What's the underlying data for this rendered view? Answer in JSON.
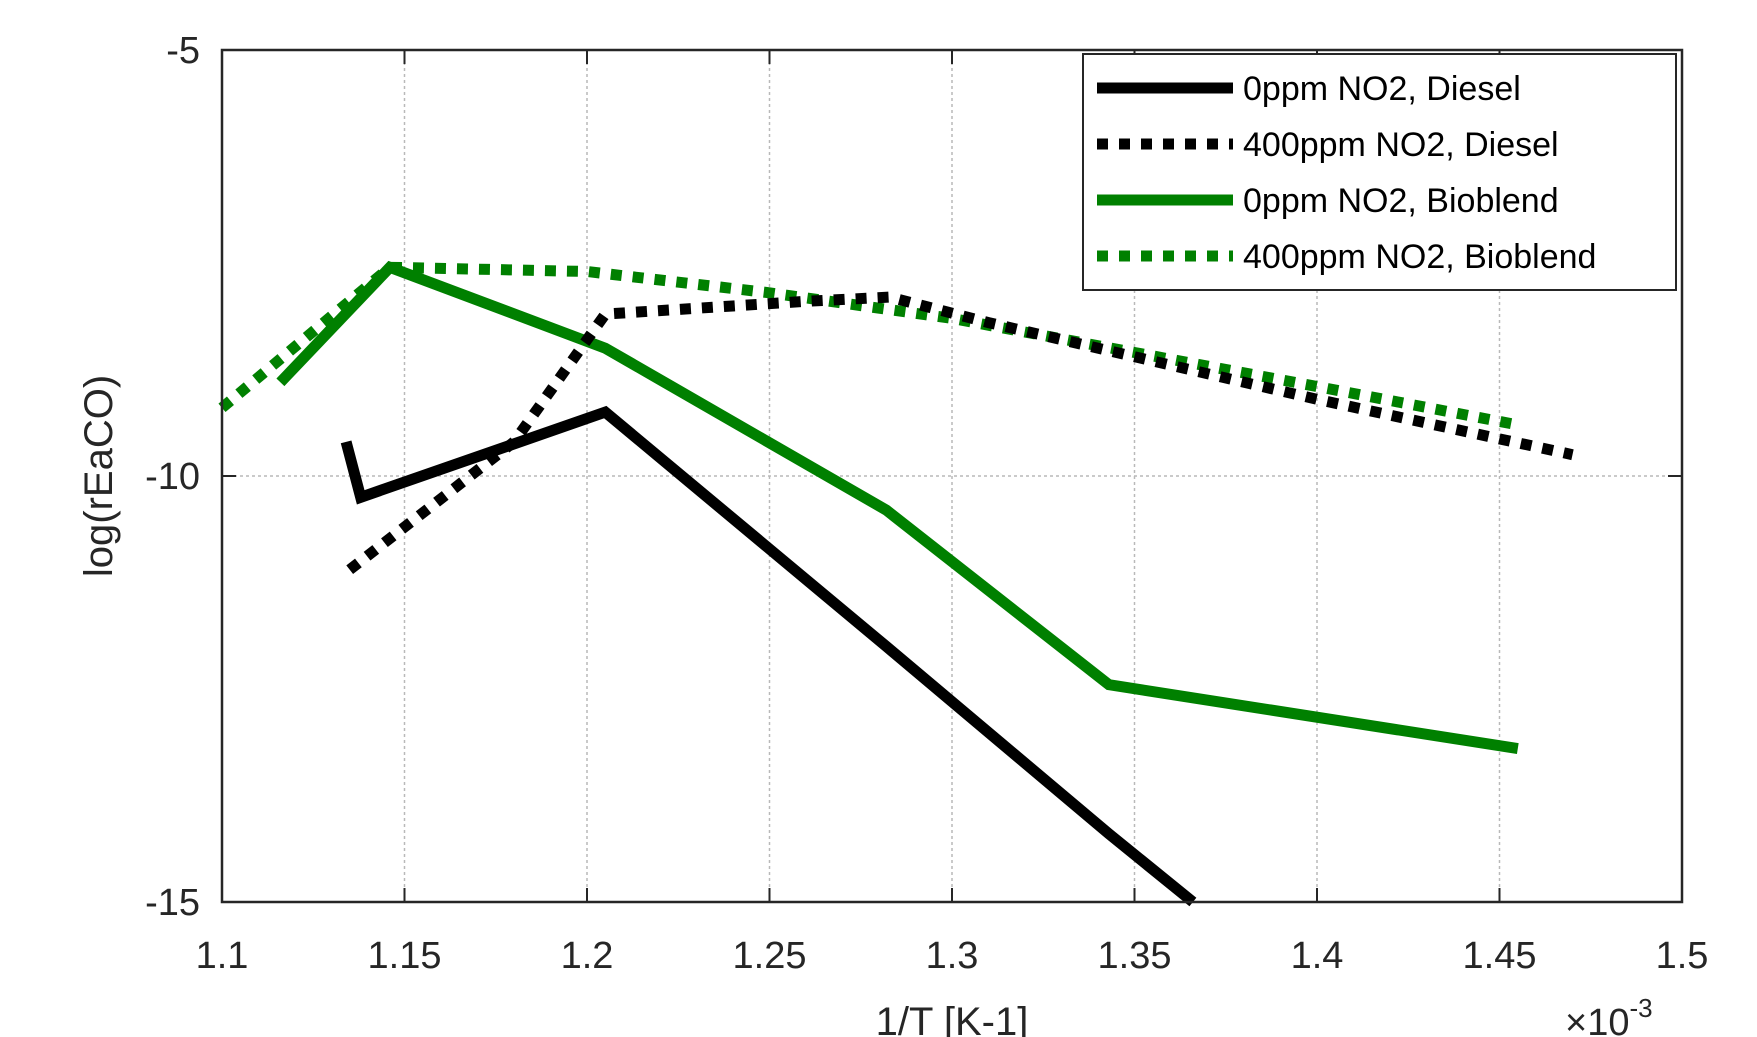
{
  "chart_data": {
    "type": "line",
    "title": "",
    "xlabel": "1/T [K-1]",
    "ylabel": "log(rEaCO)",
    "x_multiplier_base": "×10",
    "x_multiplier_exp": "-3",
    "xlim": [
      1.1,
      1.5
    ],
    "ylim": [
      -15,
      -5
    ],
    "x_ticks": [
      "1.1",
      "1.15",
      "1.2",
      "1.25",
      "1.3",
      "1.35",
      "1.4",
      "1.45",
      "1.5"
    ],
    "y_ticks": [
      "-5",
      "-10",
      "-15"
    ],
    "grid": true,
    "legend_position": "top-right",
    "series": [
      {
        "name": "0ppm NO2, Diesel",
        "color": "#000000",
        "style": "solid",
        "x": [
          1.134,
          1.138,
          1.205,
          1.282,
          1.343,
          1.366
        ],
        "y": [
          -9.6,
          -10.25,
          -9.25,
          -12.0,
          -14.2,
          -15.0
        ]
      },
      {
        "name": "400ppm NO2, Diesel",
        "color": "#000000",
        "style": "dotted",
        "x": [
          1.135,
          1.18,
          1.205,
          1.26,
          1.283,
          1.31,
          1.35,
          1.4,
          1.47
        ],
        "y": [
          -11.1,
          -9.6,
          -8.1,
          -7.95,
          -7.9,
          -8.2,
          -8.6,
          -9.1,
          -9.75
        ]
      },
      {
        "name": "0ppm NO2, Bioblend",
        "color": "#008000",
        "style": "solid",
        "x": [
          1.116,
          1.146,
          1.205,
          1.282,
          1.343,
          1.455
        ],
        "y": [
          -8.9,
          -7.55,
          -8.5,
          -10.4,
          -12.45,
          -13.2
        ]
      },
      {
        "name": "400ppm NO2, Bioblend",
        "color": "#008000",
        "style": "dotted",
        "x": [
          1.1,
          1.146,
          1.2,
          1.25,
          1.3,
          1.35,
          1.4,
          1.455
        ],
        "y": [
          -9.2,
          -7.55,
          -7.6,
          -7.85,
          -8.15,
          -8.55,
          -8.95,
          -9.4
        ]
      }
    ]
  }
}
